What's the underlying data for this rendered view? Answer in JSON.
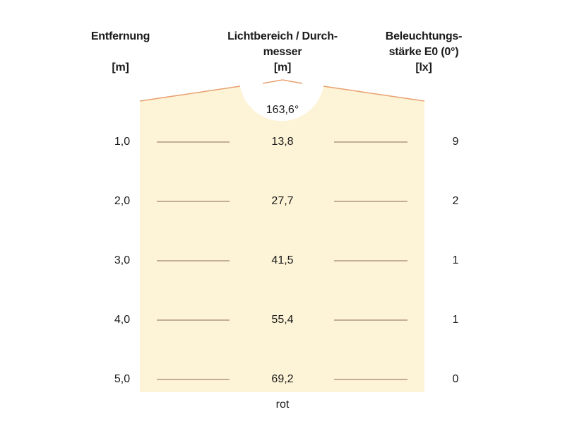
{
  "headers": {
    "distance": {
      "title": "Entfernung",
      "unit": "[m]"
    },
    "diameter": {
      "title_line1": "Lichtbereich / Durch-",
      "title_line2": "messer",
      "unit": "[m]"
    },
    "illuminance": {
      "title_line1": "Beleuchtungs-",
      "title_line2": "stärke E0 (0°)",
      "unit": "[lx]"
    }
  },
  "beam_angle": "163,6°",
  "rows": [
    {
      "distance": "1,0",
      "diameter": "13,8",
      "illuminance": "9"
    },
    {
      "distance": "2,0",
      "diameter": "27,7",
      "illuminance": "2"
    },
    {
      "distance": "3,0",
      "diameter": "41,5",
      "illuminance": "1"
    },
    {
      "distance": "4,0",
      "diameter": "55,4",
      "illuminance": "1"
    },
    {
      "distance": "5,0",
      "diameter": "69,2",
      "illuminance": "0"
    }
  ],
  "footer_label": "rot",
  "colors": {
    "beam_fill": "#fdf3d6",
    "beam_edge": "#e8a070",
    "line": "#8a6a55"
  }
}
